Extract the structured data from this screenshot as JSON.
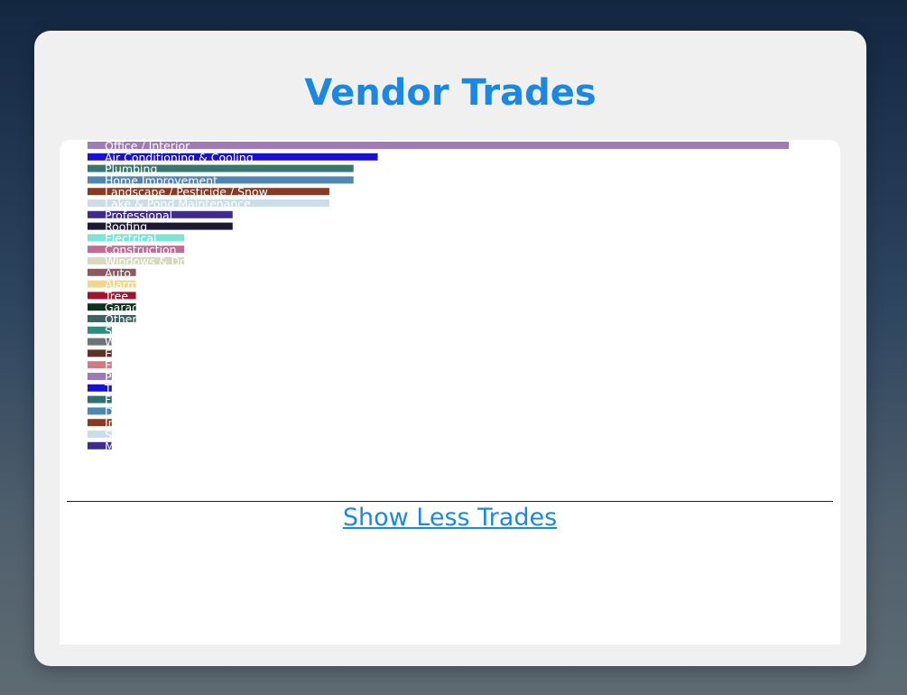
{
  "page": {
    "title": "Vendor Trades",
    "toggle_label": "Show Less Trades"
  },
  "chart_data": {
    "type": "bar",
    "orientation": "horizontal",
    "title": "Vendor Trades",
    "xlabel": "",
    "ylabel": "",
    "xlim": [
      0,
      29
    ],
    "grid": false,
    "legend": "none",
    "bar_label_position": "inside-start",
    "categories": [
      "Office / Interior",
      "Air Conditioning & Cooling",
      "Plumbing",
      "Home Improvement",
      "Landscape / Pesticide / Snow",
      "Lake & Pond Maintenance",
      "Professional",
      "Roofing",
      "Electrical",
      "Construction",
      "Windows & Doors",
      "Auto",
      "Alarm",
      "Tree",
      "Garage",
      "Other",
      "S",
      "W",
      "E",
      "F",
      "P",
      "T",
      "F",
      "D",
      "In",
      "S",
      "M"
    ],
    "values": [
      29,
      12,
      11,
      11,
      10,
      10,
      6,
      6,
      4,
      4,
      4,
      2,
      2,
      2,
      2,
      2,
      1,
      1,
      1,
      1,
      1,
      1,
      1,
      1,
      1,
      1,
      1
    ],
    "colors": [
      "#a07ab5",
      "#1a10d4",
      "#3a7670",
      "#4f86b4",
      "#883a22",
      "#c9dee8",
      "#3e2b8c",
      "#1c1a33",
      "#7fe3d8",
      "#c06c95",
      "#d6d8c0",
      "#8a5a60",
      "#f2d68c",
      "#a01430",
      "#0f3020",
      "#3e6462",
      "#2a8e7a",
      "#6d7274",
      "#5a3426",
      "#d07a82",
      "#9a7ab8",
      "#1a10d4",
      "#2f7070",
      "#4f86b4",
      "#883a22",
      "#c9dee8",
      "#3e2b8c"
    ]
  }
}
